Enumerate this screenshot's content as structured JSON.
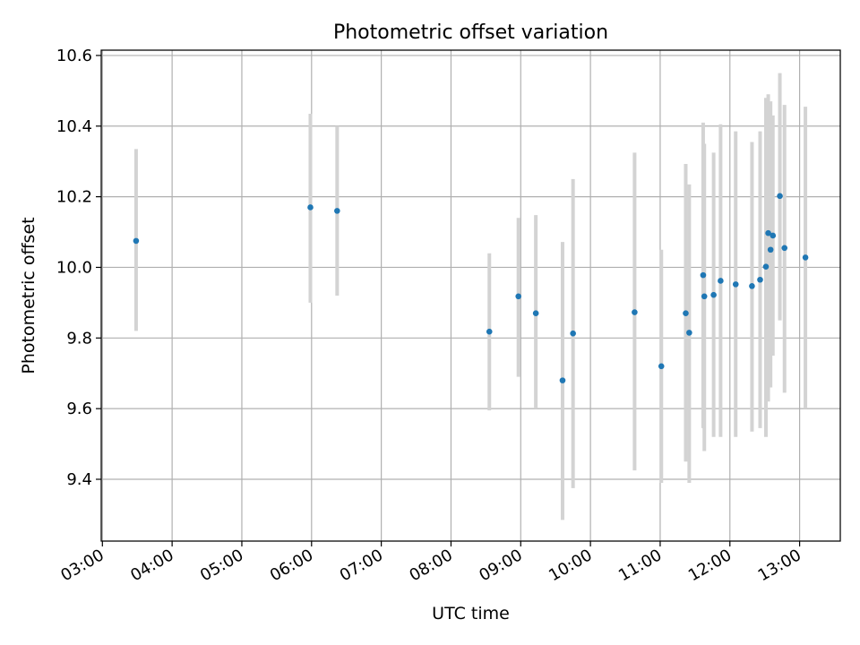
{
  "chart_data": {
    "type": "scatter",
    "title": "Photometric offset variation",
    "xlabel": "UTC time",
    "ylabel": "Photometric offset",
    "xlim": [
      "02:59",
      "13:35"
    ],
    "ylim": [
      9.225,
      10.615
    ],
    "xticks": [
      "03:00",
      "04:00",
      "05:00",
      "06:00",
      "07:00",
      "08:00",
      "09:00",
      "10:00",
      "11:00",
      "12:00",
      "13:00"
    ],
    "yticks": [
      "9.4",
      "9.6",
      "9.8",
      "10.0",
      "10.2",
      "10.4",
      "10.6"
    ],
    "grid": true,
    "marker_color": "#1f77b4",
    "errorbar_color": "#d3d3d3",
    "points": [
      {
        "x": "03:29",
        "y": 10.075,
        "ylow": 9.82,
        "yhigh": 10.335
      },
      {
        "x": "05:59",
        "y": 10.17,
        "ylow": 9.9,
        "yhigh": 10.435
      },
      {
        "x": "06:22",
        "y": 10.16,
        "ylow": 9.92,
        "yhigh": 10.4
      },
      {
        "x": "08:33",
        "y": 9.818,
        "ylow": 9.595,
        "yhigh": 10.04
      },
      {
        "x": "08:58",
        "y": 9.918,
        "ylow": 9.69,
        "yhigh": 10.14
      },
      {
        "x": "09:13",
        "y": 9.87,
        "ylow": 9.6,
        "yhigh": 10.148
      },
      {
        "x": "09:36",
        "y": 9.68,
        "ylow": 9.285,
        "yhigh": 10.072
      },
      {
        "x": "09:45",
        "y": 9.813,
        "ylow": 9.375,
        "yhigh": 10.25
      },
      {
        "x": "10:38",
        "y": 9.873,
        "ylow": 9.425,
        "yhigh": 10.325
      },
      {
        "x": "11:01",
        "y": 9.72,
        "ylow": 9.39,
        "yhigh": 10.05
      },
      {
        "x": "11:22",
        "y": 9.87,
        "ylow": 9.45,
        "yhigh": 10.293
      },
      {
        "x": "11:25",
        "y": 9.815,
        "ylow": 9.39,
        "yhigh": 10.235
      },
      {
        "x": "11:37",
        "y": 9.978,
        "ylow": 9.545,
        "yhigh": 10.41
      },
      {
        "x": "11:38",
        "y": 9.918,
        "ylow": 9.48,
        "yhigh": 10.35
      },
      {
        "x": "11:46",
        "y": 9.922,
        "ylow": 9.52,
        "yhigh": 10.325
      },
      {
        "x": "11:52",
        "y": 9.962,
        "ylow": 9.52,
        "yhigh": 10.405
      },
      {
        "x": "12:05",
        "y": 9.952,
        "ylow": 9.52,
        "yhigh": 10.385
      },
      {
        "x": "12:19",
        "y": 9.947,
        "ylow": 9.535,
        "yhigh": 10.355
      },
      {
        "x": "12:26",
        "y": 9.965,
        "ylow": 9.545,
        "yhigh": 10.385
      },
      {
        "x": "12:31",
        "y": 10.002,
        "ylow": 9.52,
        "yhigh": 10.48
      },
      {
        "x": "12:33",
        "y": 10.097,
        "ylow": 9.62,
        "yhigh": 10.49
      },
      {
        "x": "12:35",
        "y": 10.05,
        "ylow": 9.66,
        "yhigh": 10.47
      },
      {
        "x": "12:37",
        "y": 10.09,
        "ylow": 9.75,
        "yhigh": 10.43
      },
      {
        "x": "12:43",
        "y": 10.202,
        "ylow": 9.85,
        "yhigh": 10.55
      },
      {
        "x": "12:47",
        "y": 10.055,
        "ylow": 9.645,
        "yhigh": 10.46
      },
      {
        "x": "13:05",
        "y": 10.028,
        "ylow": 9.6,
        "yhigh": 10.455
      }
    ]
  }
}
